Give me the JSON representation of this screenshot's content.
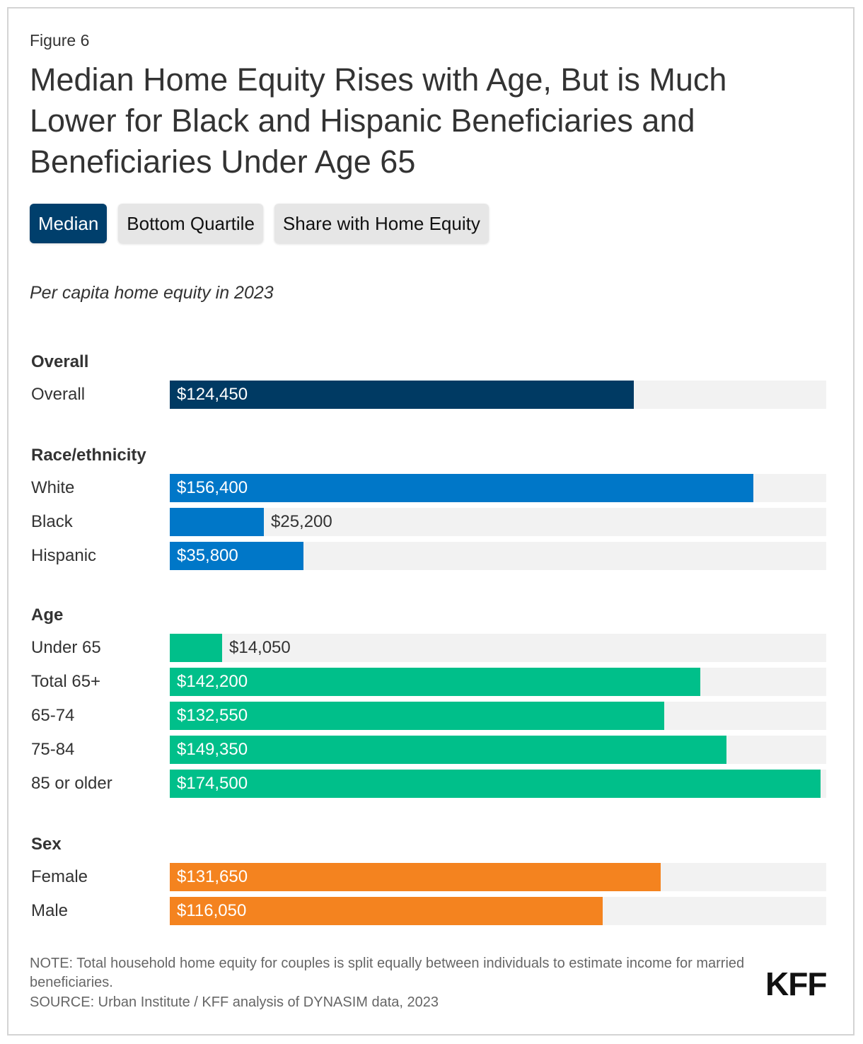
{
  "figure_label": "Figure 6",
  "title": "Median Home Equity Rises with Age, But is Much Lower for Black and Hispanic Beneficiaries and Beneficiaries Under Age 65",
  "tabs": [
    {
      "label": "Median",
      "active": true
    },
    {
      "label": "Bottom Quartile",
      "active": false
    },
    {
      "label": "Share with Home Equity",
      "active": false
    }
  ],
  "subtitle": "Per capita home equity in 2023",
  "colors": {
    "overall": "#003a63",
    "race": "#0077c8",
    "age": "#00bf8a",
    "sex": "#f4831f",
    "track": "#f2f2f2"
  },
  "chart_data": {
    "type": "bar",
    "orientation": "horizontal",
    "title": "Per capita home equity in 2023",
    "xlim": [
      0,
      176000
    ],
    "groups": [
      {
        "name": "Overall",
        "color_key": "overall",
        "categories": [
          "Overall"
        ],
        "values": [
          124450
        ],
        "labels": [
          "$124,450"
        ]
      },
      {
        "name": "Race/ethnicity",
        "color_key": "race",
        "categories": [
          "White",
          "Black",
          "Hispanic"
        ],
        "values": [
          156400,
          25200,
          35800
        ],
        "labels": [
          "$156,400",
          "$25,200",
          "$35,800"
        ]
      },
      {
        "name": "Age",
        "color_key": "age",
        "categories": [
          "Under 65",
          "Total 65+",
          "65-74",
          "75-84",
          "85 or older"
        ],
        "values": [
          14050,
          142200,
          132550,
          149350,
          174500
        ],
        "labels": [
          "$14,050",
          "$142,200",
          "$132,550",
          "$149,350",
          "$174,500"
        ]
      },
      {
        "name": "Sex",
        "color_key": "sex",
        "categories": [
          "Female",
          "Male"
        ],
        "values": [
          131650,
          116050
        ],
        "labels": [
          "$131,650",
          "$116,050"
        ]
      }
    ]
  },
  "note": "NOTE: Total household home equity for couples is split equally between individuals to estimate income for married beneficiaries.",
  "source": "SOURCE: Urban Institute / KFF analysis of DYNASIM data, 2023",
  "logo": "KFF"
}
